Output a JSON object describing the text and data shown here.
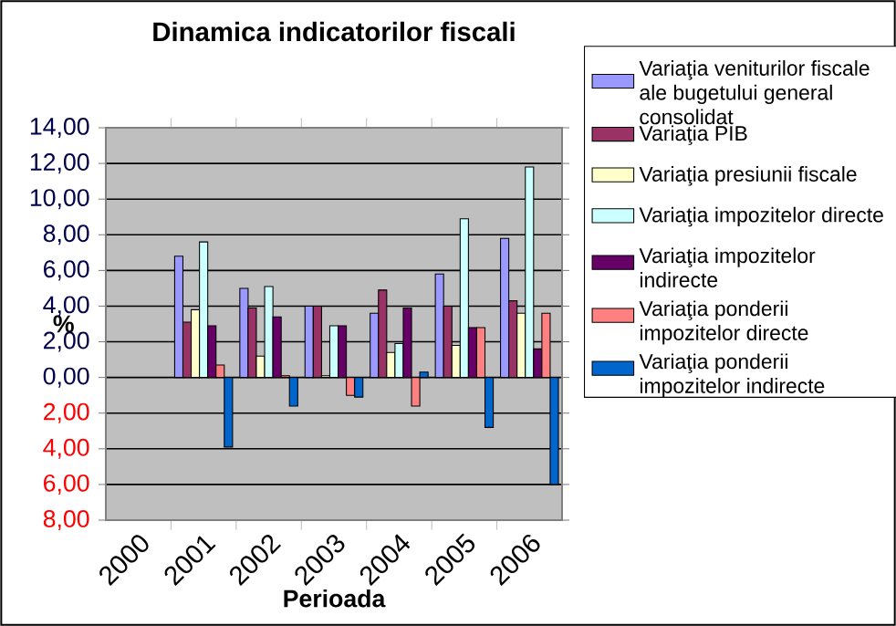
{
  "chart_data": {
    "type": "bar",
    "title": "Dinamica indicatorilor fiscali",
    "xlabel": "Perioada",
    "ylabel": "%",
    "categories": [
      "2000",
      "2001",
      "2002",
      "2003",
      "2004",
      "2005",
      "2006"
    ],
    "series": [
      {
        "name": "Variaţia veniturilor fiscale ale bugetului general consolidat",
        "color": "#9999ff",
        "values": [
          null,
          6.8,
          5.0,
          4.0,
          3.6,
          5.8,
          7.8
        ]
      },
      {
        "name": "Variaţia PIB",
        "color": "#993366",
        "values": [
          null,
          3.1,
          3.9,
          4.0,
          4.9,
          4.0,
          4.3
        ]
      },
      {
        "name": "Variaţia presiunii fiscale",
        "color": "#ffffcc",
        "values": [
          null,
          3.8,
          1.2,
          0.1,
          1.4,
          1.8,
          3.6
        ]
      },
      {
        "name": "Variaţia impozitelor directe",
        "color": "#ccffff",
        "values": [
          null,
          7.6,
          5.1,
          2.9,
          1.9,
          8.9,
          11.8
        ]
      },
      {
        "name": "Variaţia impozitelor indirecte",
        "color": "#660066",
        "values": [
          null,
          2.9,
          3.4,
          2.9,
          3.9,
          2.8,
          1.6
        ]
      },
      {
        "name": "Variaţia ponderii impozitelor directe",
        "color": "#ff8080",
        "values": [
          null,
          0.7,
          0.1,
          -1.0,
          -1.6,
          2.8,
          3.6
        ]
      },
      {
        "name": "Variaţia ponderii impozitelor indirecte",
        "color": "#0066cc",
        "values": [
          null,
          -3.9,
          -1.6,
          -1.1,
          0.3,
          -2.8,
          -6.0
        ]
      }
    ],
    "ylim": [
      -8,
      14
    ],
    "yticks": [
      {
        "value": 14,
        "label": "14,00"
      },
      {
        "value": 12,
        "label": "12,00"
      },
      {
        "value": 10,
        "label": "10,00"
      },
      {
        "value": 8,
        "label": "8,00"
      },
      {
        "value": 6,
        "label": "6,00"
      },
      {
        "value": 4,
        "label": "4,00"
      },
      {
        "value": 2,
        "label": "2,00"
      },
      {
        "value": 0,
        "label": "0,00"
      },
      {
        "value": -2,
        "label": "2,00"
      },
      {
        "value": -4,
        "label": "4,00"
      },
      {
        "value": -6,
        "label": "6,00"
      },
      {
        "value": -8,
        "label": "8,00"
      }
    ],
    "grid": "y",
    "legend": "right"
  }
}
